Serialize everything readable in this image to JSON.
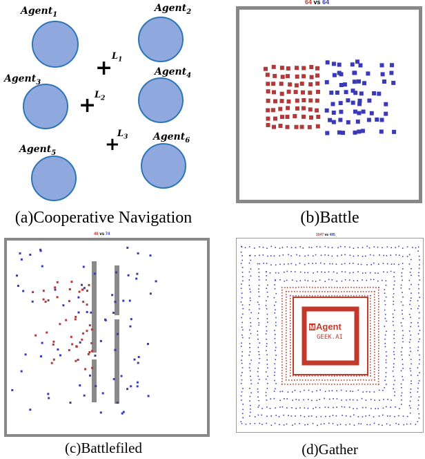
{
  "captions": {
    "a": "(a)Cooperative Navigation",
    "b": "(b)Battle",
    "c": "(c)Battlefiled",
    "d": "(d)Gather"
  },
  "nav": {
    "agents": [
      {
        "base": "Agent",
        "sub": "1"
      },
      {
        "base": "Agent",
        "sub": "2"
      },
      {
        "base": "Agent",
        "sub": "3"
      },
      {
        "base": "Agent",
        "sub": "4"
      },
      {
        "base": "Agent",
        "sub": "5"
      },
      {
        "base": "Agent",
        "sub": "6"
      }
    ],
    "landmarks": [
      {
        "base": "L",
        "sub": "1"
      },
      {
        "base": "L",
        "sub": "2"
      },
      {
        "base": "L",
        "sub": "3"
      }
    ],
    "agent_color": "#8fa9de",
    "agent_border": "#2e75b6"
  },
  "battle": {
    "score_red": "64",
    "vs": "vs",
    "score_blue": "64",
    "red_color": "#b03a3a",
    "blue_color": "#3a3ab8",
    "border_color": "#888888"
  },
  "battlefield": {
    "score_red": "46",
    "vs": "vs",
    "score_blue": "74",
    "wall_color": "#8a8a8a"
  },
  "gather": {
    "score_red": "1047",
    "vs": "vs",
    "score_blue": "495",
    "logo_line1": "Agent",
    "logo_line2": "GEEK.AI",
    "logo_color": "#c0392b"
  }
}
